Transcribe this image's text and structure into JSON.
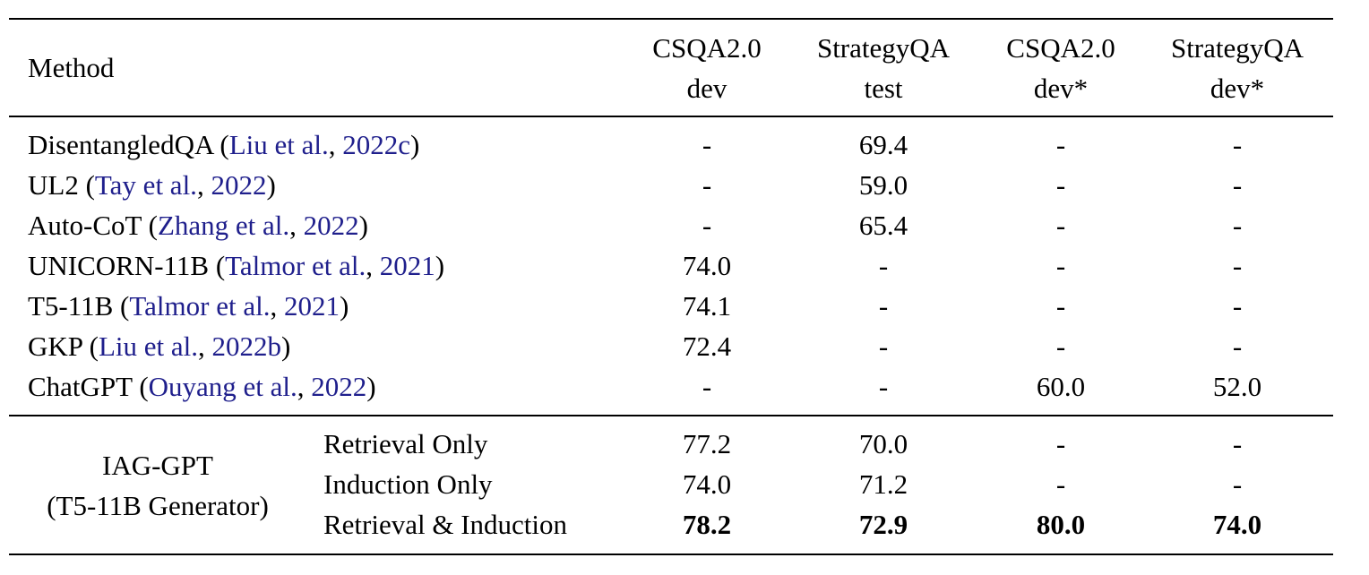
{
  "header": {
    "method": "Method",
    "columns": [
      {
        "line1": "CSQA2.0",
        "line2": "dev"
      },
      {
        "line1": "StrategyQA",
        "line2": "test"
      },
      {
        "line1": "CSQA2.0",
        "line2": "dev*"
      },
      {
        "line1": "StrategyQA",
        "line2": "dev*"
      }
    ]
  },
  "baselines": [
    {
      "name": "DisentangledQA",
      "open": " (",
      "cite_a": "Liu et al.",
      "sep": ", ",
      "cite_b": "2022c",
      "close": ")",
      "values": [
        "-",
        "69.4",
        "-",
        "-"
      ]
    },
    {
      "name": "UL2",
      "open": " (",
      "cite_a": "Tay et al.",
      "sep": ", ",
      "cite_b": "2022",
      "close": ")",
      "values": [
        "-",
        "59.0",
        "-",
        "-"
      ]
    },
    {
      "name": "Auto-CoT",
      "open": " (",
      "cite_a": "Zhang et al.",
      "sep": ", ",
      "cite_b": "2022",
      "close": ")",
      "values": [
        "-",
        "65.4",
        "-",
        "-"
      ]
    },
    {
      "name": "UNICORN-11B",
      "open": " (",
      "cite_a": "Talmor et al.",
      "sep": ", ",
      "cite_b": "2021",
      "close": ")",
      "values": [
        "74.0",
        "-",
        "-",
        "-"
      ]
    },
    {
      "name": "T5-11B",
      "open": " (",
      "cite_a": "Talmor et al.",
      "sep": ", ",
      "cite_b": "2021",
      "close": ")",
      "values": [
        "74.1",
        "-",
        "-",
        "-"
      ]
    },
    {
      "name": "GKP",
      "open": " (",
      "cite_a": "Liu et al.",
      "sep": ", ",
      "cite_b": "2022b",
      "close": ")",
      "values": [
        "72.4",
        "-",
        "-",
        "-"
      ]
    },
    {
      "name": "ChatGPT",
      "open": " (",
      "cite_a": "Ouyang et al.",
      "sep": ", ",
      "cite_b": "2022",
      "close": ")",
      "values": [
        "-",
        "-",
        "60.0",
        "52.0"
      ]
    }
  ],
  "iag": {
    "label_line1": "IAG-GPT",
    "label_line2": "(T5-11B Generator)",
    "rows": [
      {
        "variant": "Retrieval Only",
        "values": [
          "77.2",
          "70.0",
          "-",
          "-"
        ]
      },
      {
        "variant": "Induction Only",
        "values": [
          "74.0",
          "71.2",
          "-",
          "-"
        ]
      },
      {
        "variant": "Retrieval & Induction",
        "values": [
          "78.2",
          "72.9",
          "80.0",
          "74.0"
        ]
      }
    ]
  }
}
